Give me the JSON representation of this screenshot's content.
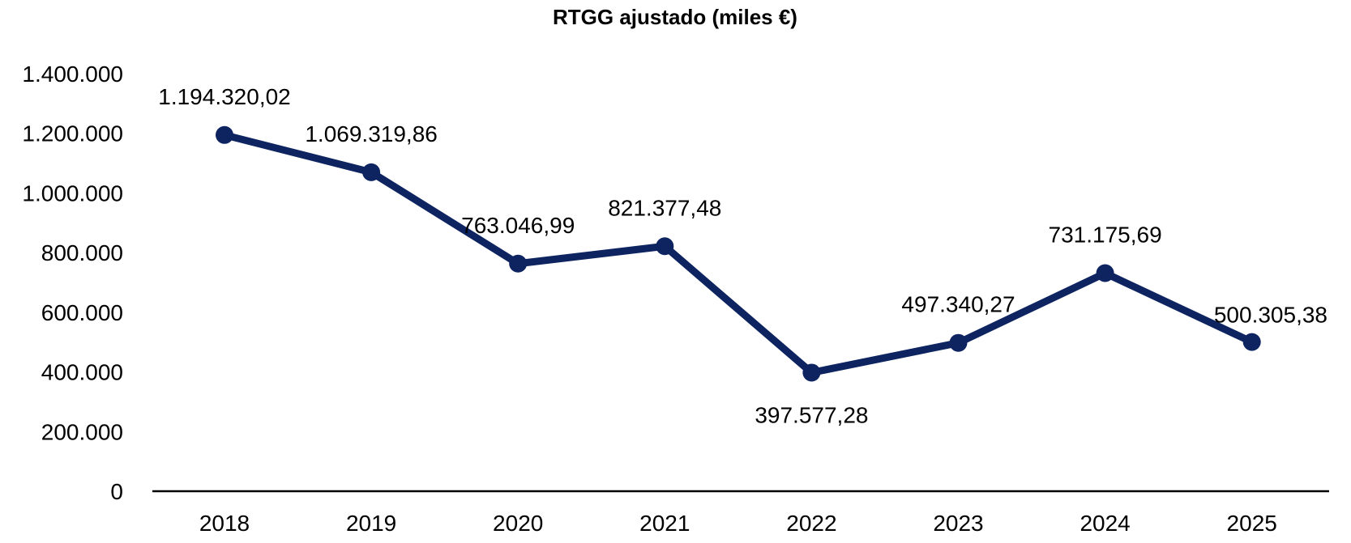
{
  "chart_data": {
    "type": "line",
    "title": "RTGG ajustado (miles €)",
    "xlabel": "",
    "ylabel": "",
    "categories": [
      "2018",
      "2019",
      "2020",
      "2021",
      "2022",
      "2023",
      "2024",
      "2025"
    ],
    "series": [
      {
        "values": [
          1194320.02,
          1069319.86,
          763046.99,
          821377.48,
          397577.28,
          497340.27,
          731175.69,
          500305.38
        ],
        "data_labels": [
          "1.194.320,02",
          "1.069.319,86",
          "763.046,99",
          "821.377,48",
          "397.577,28",
          "497.340,27",
          "731.175,69",
          "500.305,38"
        ],
        "color": "#0d2461"
      }
    ],
    "ylim": [
      0,
      1400000
    ],
    "yticks": [
      0,
      200000,
      400000,
      600000,
      800000,
      1000000,
      1200000,
      1400000
    ],
    "ytick_labels": [
      "0",
      "200.000",
      "400.000",
      "600.000",
      "800.000",
      "1.000.000",
      "1.200.000",
      "1.400.000"
    ],
    "grid": false,
    "legend": "none"
  }
}
